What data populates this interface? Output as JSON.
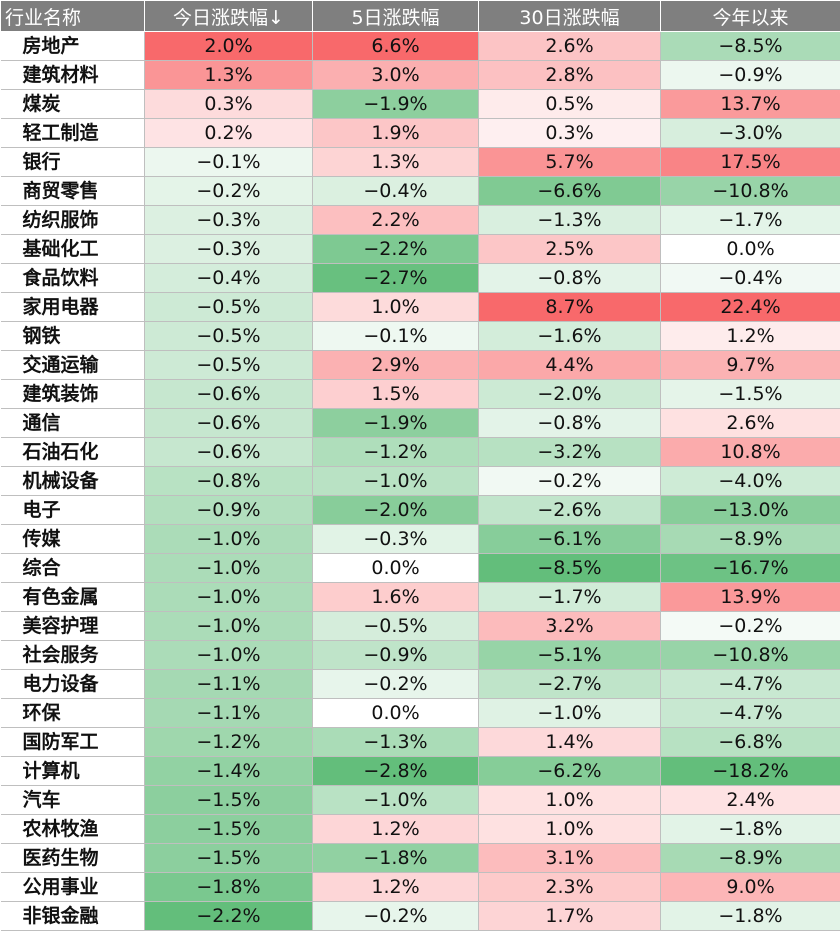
{
  "chart_data": {
    "type": "table",
    "columns": [
      "行业名称",
      "今日涨跌幅↓",
      "5日涨跌幅",
      "30日涨跌幅",
      "今年以来"
    ],
    "rows": [
      {
        "name": "房地产",
        "values": [
          "2.0%",
          "6.6%",
          "2.6%",
          "−8.5%"
        ]
      },
      {
        "name": "建筑材料",
        "values": [
          "1.3%",
          "3.0%",
          "2.8%",
          "−0.9%"
        ]
      },
      {
        "name": "煤炭",
        "values": [
          "0.3%",
          "−1.9%",
          "0.5%",
          "13.7%"
        ]
      },
      {
        "name": "轻工制造",
        "values": [
          "0.2%",
          "1.9%",
          "0.3%",
          "−3.0%"
        ]
      },
      {
        "name": "银行",
        "values": [
          "−0.1%",
          "1.3%",
          "5.7%",
          "17.5%"
        ]
      },
      {
        "name": "商贸零售",
        "values": [
          "−0.2%",
          "−0.4%",
          "−6.6%",
          "−10.8%"
        ]
      },
      {
        "name": "纺织服饰",
        "values": [
          "−0.3%",
          "2.2%",
          "−1.3%",
          "−1.7%"
        ]
      },
      {
        "name": "基础化工",
        "values": [
          "−0.3%",
          "−2.2%",
          "2.5%",
          "0.0%"
        ]
      },
      {
        "name": "食品饮料",
        "values": [
          "−0.4%",
          "−2.7%",
          "−0.8%",
          "−0.4%"
        ]
      },
      {
        "name": "家用电器",
        "values": [
          "−0.5%",
          "1.0%",
          "8.7%",
          "22.4%"
        ]
      },
      {
        "name": "钢铁",
        "values": [
          "−0.5%",
          "−0.1%",
          "−1.6%",
          "1.2%"
        ]
      },
      {
        "name": "交通运输",
        "values": [
          "−0.5%",
          "2.9%",
          "4.4%",
          "9.7%"
        ]
      },
      {
        "name": "建筑装饰",
        "values": [
          "−0.6%",
          "1.5%",
          "−2.0%",
          "−1.5%"
        ]
      },
      {
        "name": "通信",
        "values": [
          "−0.6%",
          "−1.9%",
          "−0.8%",
          "2.6%"
        ]
      },
      {
        "name": "石油石化",
        "values": [
          "−0.6%",
          "−1.2%",
          "−3.2%",
          "10.8%"
        ]
      },
      {
        "name": "机械设备",
        "values": [
          "−0.8%",
          "−1.0%",
          "−0.2%",
          "−4.0%"
        ]
      },
      {
        "name": "电子",
        "values": [
          "−0.9%",
          "−2.0%",
          "−2.6%",
          "−13.0%"
        ]
      },
      {
        "name": "传媒",
        "values": [
          "−1.0%",
          "−0.3%",
          "−6.1%",
          "−8.9%"
        ]
      },
      {
        "name": "综合",
        "values": [
          "−1.0%",
          "0.0%",
          "−8.5%",
          "−16.7%"
        ]
      },
      {
        "name": "有色金属",
        "values": [
          "−1.0%",
          "1.6%",
          "−1.7%",
          "13.9%"
        ]
      },
      {
        "name": "美容护理",
        "values": [
          "−1.0%",
          "−0.5%",
          "3.2%",
          "−0.2%"
        ]
      },
      {
        "name": "社会服务",
        "values": [
          "−1.0%",
          "−0.9%",
          "−5.1%",
          "−10.8%"
        ]
      },
      {
        "name": "电力设备",
        "values": [
          "−1.1%",
          "−0.2%",
          "−2.7%",
          "−4.7%"
        ]
      },
      {
        "name": "环保",
        "values": [
          "−1.1%",
          "0.0%",
          "−1.0%",
          "−4.7%"
        ]
      },
      {
        "name": "国防军工",
        "values": [
          "−1.2%",
          "−1.3%",
          "1.4%",
          "−6.8%"
        ]
      },
      {
        "name": "计算机",
        "values": [
          "−1.4%",
          "−2.8%",
          "−6.2%",
          "−18.2%"
        ]
      },
      {
        "name": "汽车",
        "values": [
          "−1.5%",
          "−1.0%",
          "1.0%",
          "2.4%"
        ]
      },
      {
        "name": "农林牧渔",
        "values": [
          "−1.5%",
          "1.2%",
          "1.0%",
          "−1.8%"
        ]
      },
      {
        "name": "医药生物",
        "values": [
          "−1.5%",
          "−1.8%",
          "3.1%",
          "−8.9%"
        ]
      },
      {
        "name": "公用事业",
        "values": [
          "−1.8%",
          "1.2%",
          "2.3%",
          "9.0%"
        ]
      },
      {
        "name": "非银金融",
        "values": [
          "−2.2%",
          "−0.2%",
          "1.7%",
          "−1.8%"
        ]
      }
    ],
    "colors": {
      "header_bg": "#7f7f7f",
      "header_text": "#ffffff",
      "positive_max": "#f8696b",
      "negative_max": "#63be7b",
      "neutral": "#ffffff"
    }
  }
}
